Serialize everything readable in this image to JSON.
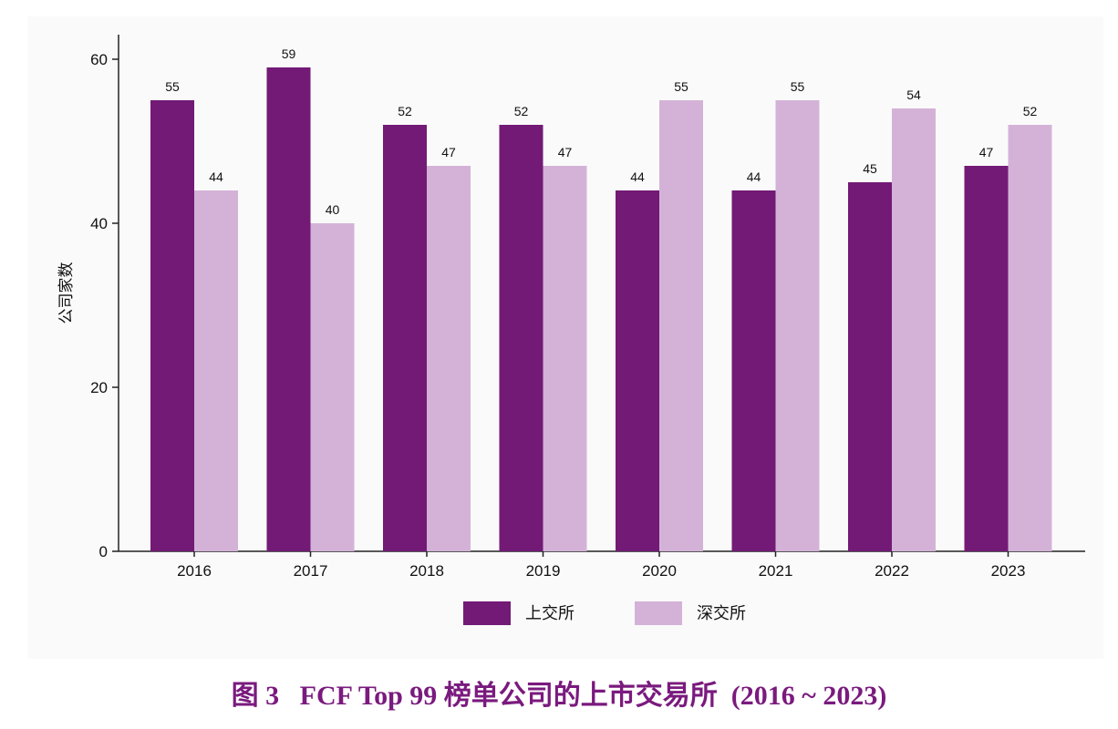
{
  "chart_data": {
    "type": "bar",
    "categories": [
      "2016",
      "2017",
      "2018",
      "2019",
      "2020",
      "2021",
      "2022",
      "2023"
    ],
    "series": [
      {
        "name": "上交所",
        "values": [
          55,
          59,
          52,
          52,
          44,
          44,
          45,
          47
        ],
        "color": "#721a76"
      },
      {
        "name": "深交所",
        "values": [
          44,
          40,
          47,
          47,
          55,
          55,
          54,
          52
        ],
        "color": "#d4b2d8"
      }
    ],
    "ylabel": "公司家数",
    "xlabel": "",
    "ylim": [
      0,
      63
    ],
    "yticks": [
      0,
      20,
      40,
      60
    ],
    "data_labels": true,
    "legend_position": "bottom-center",
    "grid": false
  },
  "caption": {
    "figure_no": "图 3",
    "text": "FCF Top 99 榜单公司的上市交易所  (2016 ~ 2023)"
  }
}
